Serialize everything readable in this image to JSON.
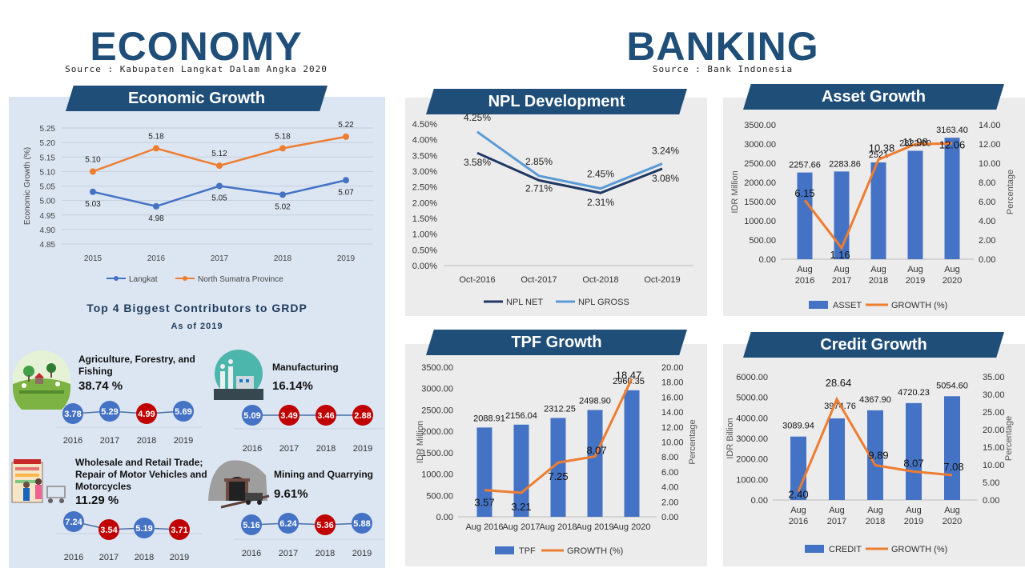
{
  "header": {
    "economy_title": "ECONOMY",
    "economy_source": "Source : Kabupaten Langkat Dalam Angka 2020",
    "banking_title": "BANKING",
    "banking_source": "Source : Bank Indonesia"
  },
  "colors": {
    "navy": "#1f4e79",
    "blue": "#4472c4",
    "orange": "#ed7d31",
    "red": "#c00000",
    "dark_line": "#203864",
    "light_line": "#5b9bd5"
  },
  "econ_growth": {
    "title": "Economic Growth"
  },
  "npl": {
    "title": "NPL Development"
  },
  "asset": {
    "title": "Asset Growth"
  },
  "tpf": {
    "title": "TPF Growth"
  },
  "credit": {
    "title": "Credit Growth"
  },
  "contributors": {
    "title": "Top 4 Biggest Contributors to GRDP",
    "subtitle": "As of 2019",
    "years": [
      "2016",
      "2017",
      "2018",
      "2019"
    ],
    "sectors": [
      {
        "name": "Agriculture, Forestry, and Fishing",
        "share": "38.74 %",
        "icon": "farm-icon",
        "values": [
          "3.78",
          "5.29",
          "4.99",
          "5.69"
        ],
        "colors": [
          "blue",
          "blue",
          "red",
          "blue"
        ]
      },
      {
        "name": "Manufacturing",
        "share": "16.14%",
        "icon": "factory-icon",
        "values": [
          "5.09",
          "3.49",
          "3.46",
          "2.88"
        ],
        "colors": [
          "blue",
          "red",
          "red",
          "red"
        ]
      },
      {
        "name": "Wholesale and Retail Trade; Repair of Motor Vehicles and Motorcycles",
        "share": "11.29 %",
        "icon": "shop-icon",
        "values": [
          "7.24",
          "3.54",
          "5.19",
          "3.71"
        ],
        "colors": [
          "blue",
          "red",
          "blue",
          "red"
        ]
      },
      {
        "name": "Mining and Quarrying",
        "share": "9.61%",
        "icon": "mine-icon",
        "values": [
          "5.16",
          "6.24",
          "5.36",
          "5.88"
        ],
        "colors": [
          "blue",
          "blue",
          "red",
          "blue"
        ]
      }
    ]
  },
  "chart_data": [
    {
      "id": "economic-growth",
      "type": "line",
      "title": "Economic Growth",
      "ylabel": "Economic Growth (%)",
      "x": [
        "2015",
        "2016",
        "2017",
        "2018",
        "2019"
      ],
      "ylim": [
        4.85,
        5.25
      ],
      "yticks": [
        "4.85",
        "4.90",
        "4.95",
        "5.00",
        "5.05",
        "5.10",
        "5.15",
        "5.20",
        "5.25"
      ],
      "series": [
        {
          "name": "Langkat",
          "values": [
            5.03,
            4.98,
            5.05,
            5.02,
            5.07
          ],
          "labels": [
            "5.03",
            "4.98",
            "5.05",
            "5.02",
            "5.07"
          ]
        },
        {
          "name": "North Sumatra Province",
          "values": [
            5.1,
            5.18,
            5.12,
            5.18,
            5.22
          ],
          "labels": [
            "5.10",
            "5.18",
            "5.12",
            "5.18",
            "5.22"
          ]
        }
      ],
      "legend": "bottom",
      "grid": true
    },
    {
      "id": "npl-development",
      "type": "line",
      "title": "NPL Development",
      "x": [
        "Oct-2016",
        "Oct-2017",
        "Oct-2018",
        "Oct-2019"
      ],
      "ylim": [
        0,
        4.5
      ],
      "yticks": [
        "0.00%",
        "0.50%",
        "1.00%",
        "1.50%",
        "2.00%",
        "2.50%",
        "3.00%",
        "3.50%",
        "4.00%",
        "4.50%"
      ],
      "series": [
        {
          "name": "NPL NET",
          "values": [
            3.58,
            2.71,
            2.31,
            3.08
          ],
          "labels": [
            "3.58%",
            "2.71%",
            "2.31%",
            "3.08%"
          ]
        },
        {
          "name": "NPL GROSS",
          "values": [
            4.25,
            2.85,
            2.45,
            3.24
          ],
          "labels": [
            "4.25%",
            "2.85%",
            "2.45%",
            "3.24%"
          ]
        }
      ],
      "legend": "bottom",
      "grid": false
    },
    {
      "id": "asset-growth",
      "type": "bar",
      "title": "Asset Growth",
      "ylabel": "IDR Million",
      "y2label": "Percentage",
      "categories": [
        [
          "Aug",
          "2016"
        ],
        [
          "Aug",
          "2017"
        ],
        [
          "Aug",
          "2018"
        ],
        [
          "Aug",
          "2019"
        ],
        [
          "Aug",
          "2020"
        ]
      ],
      "ylim": [
        0,
        3500
      ],
      "y2lim": [
        0,
        14
      ],
      "yticks": [
        "0.00",
        "500.00",
        "1000.00",
        "1500.00",
        "2000.00",
        "2500.00",
        "3000.00",
        "3500.00"
      ],
      "y2ticks": [
        "0.00",
        "2.00",
        "4.00",
        "6.00",
        "8.00",
        "10.00",
        "12.00",
        "14.00"
      ],
      "series": [
        {
          "name": "ASSET",
          "values": [
            2257.66,
            2283.86,
            2521,
            2822.9,
            3163.4
          ],
          "labels": [
            "2257.66",
            "2283.86",
            "2521",
            "2822.90",
            "3163.40"
          ]
        },
        {
          "name": "GROWTH (%)",
          "values": [
            6.15,
            1.16,
            10.38,
            11.98,
            12.06
          ],
          "labels": [
            "6.15",
            "1.16",
            "10.38",
            "11.98",
            "12.06"
          ]
        }
      ],
      "legend": "bottom"
    },
    {
      "id": "tpf-growth",
      "type": "bar",
      "title": "TPF Growth",
      "ylabel": "IDR Million",
      "y2label": "Percentage",
      "categories": [
        [
          "Aug 2016"
        ],
        [
          "Aug 2017"
        ],
        [
          "Aug 2018"
        ],
        [
          "Aug 2019"
        ],
        [
          "Aug 2020"
        ]
      ],
      "ylim": [
        0,
        3500
      ],
      "y2lim": [
        0,
        20
      ],
      "yticks": [
        "0.00",
        "500.00",
        "1000.00",
        "1500.00",
        "2000.00",
        "2500.00",
        "3000.00",
        "3500.00"
      ],
      "y2ticks": [
        "0.00",
        "2.00",
        "4.00",
        "6.00",
        "8.00",
        "10.00",
        "12.00",
        "14.00",
        "16.00",
        "18.00",
        "20.00"
      ],
      "series": [
        {
          "name": "TPF",
          "values": [
            2088.91,
            2156.04,
            2312.25,
            2498.9,
            2960.35
          ],
          "labels": [
            "2088.91",
            "2156.04",
            "2312.25",
            "2498.90",
            "2960.35"
          ]
        },
        {
          "name": "GROWTH (%)",
          "values": [
            3.57,
            3.21,
            7.25,
            8.07,
            18.47
          ],
          "labels": [
            "3.57",
            "3.21",
            "7.25",
            "8.07",
            "18.47"
          ]
        }
      ],
      "legend": "bottom"
    },
    {
      "id": "credit-growth",
      "type": "bar",
      "title": "Credit Growth",
      "ylabel": "IDR Billion",
      "y2label": "Percentage",
      "categories": [
        [
          "Aug",
          "2016"
        ],
        [
          "Aug",
          "2017"
        ],
        [
          "Aug",
          "2018"
        ],
        [
          "Aug",
          "2019"
        ],
        [
          "Aug",
          "2020"
        ]
      ],
      "ylim": [
        0,
        6000
      ],
      "y2lim": [
        0,
        35
      ],
      "yticks": [
        "0.00",
        "1000.00",
        "2000.00",
        "3000.00",
        "4000.00",
        "5000.00",
        "6000.00"
      ],
      "y2ticks": [
        "0.00",
        "5.00",
        "10.00",
        "15.00",
        "20.00",
        "25.00",
        "30.00",
        "35.00"
      ],
      "series": [
        {
          "name": "CREDIT",
          "values": [
            3089.94,
            3974.76,
            4367.9,
            4720.23,
            5054.6
          ],
          "labels": [
            "3089.94",
            "3974.76",
            "4367.90",
            "4720.23",
            "5054.60"
          ]
        },
        {
          "name": "GROWTH (%)",
          "values": [
            2.4,
            28.64,
            9.89,
            8.07,
            7.08
          ],
          "labels": [
            "2.40",
            "28.64",
            "9.89",
            "8.07",
            "7.08"
          ]
        }
      ],
      "legend": "bottom"
    }
  ]
}
